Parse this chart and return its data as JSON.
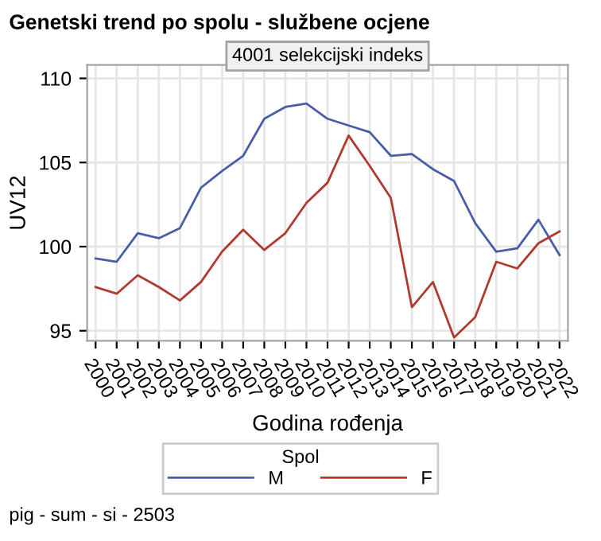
{
  "chart_data": {
    "type": "line",
    "title": "Genetski trend po spolu - službene ocjene",
    "subtitle": "4001 selekcijski indeks",
    "xlabel": "Godina rođenja",
    "ylabel": "UV12",
    "legend_title": "Spol",
    "categories": [
      "2000",
      "2001",
      "2002",
      "2003",
      "2004",
      "2005",
      "2006",
      "2007",
      "2008",
      "2009",
      "2010",
      "2011",
      "2012",
      "2013",
      "2014",
      "2015",
      "2016",
      "2017",
      "2018",
      "2019",
      "2020",
      "2021",
      "2022"
    ],
    "series": [
      {
        "name": "M",
        "color": "#4a5ea8",
        "values": [
          99.3,
          99.1,
          100.8,
          100.5,
          101.1,
          103.5,
          104.5,
          105.4,
          107.6,
          108.3,
          108.5,
          107.6,
          107.2,
          106.8,
          105.4,
          105.5,
          104.6,
          103.9,
          101.4,
          99.7,
          99.9,
          101.6,
          99.5
        ]
      },
      {
        "name": "F",
        "color": "#b03a2e",
        "values": [
          97.6,
          97.2,
          98.3,
          97.6,
          96.8,
          97.9,
          99.7,
          101.0,
          99.8,
          100.8,
          102.6,
          103.8,
          106.6,
          104.8,
          102.9,
          96.4,
          97.9,
          94.6,
          95.8,
          99.1,
          98.7,
          100.2,
          100.9
        ]
      }
    ],
    "ylim": [
      94.4,
      110.8
    ],
    "yticks": [
      95,
      100,
      105,
      110
    ],
    "grid": true,
    "legend": "bottom",
    "marker": "none",
    "line_style": "solid",
    "annotations": [
      "pig - sum - si - 2503"
    ]
  }
}
